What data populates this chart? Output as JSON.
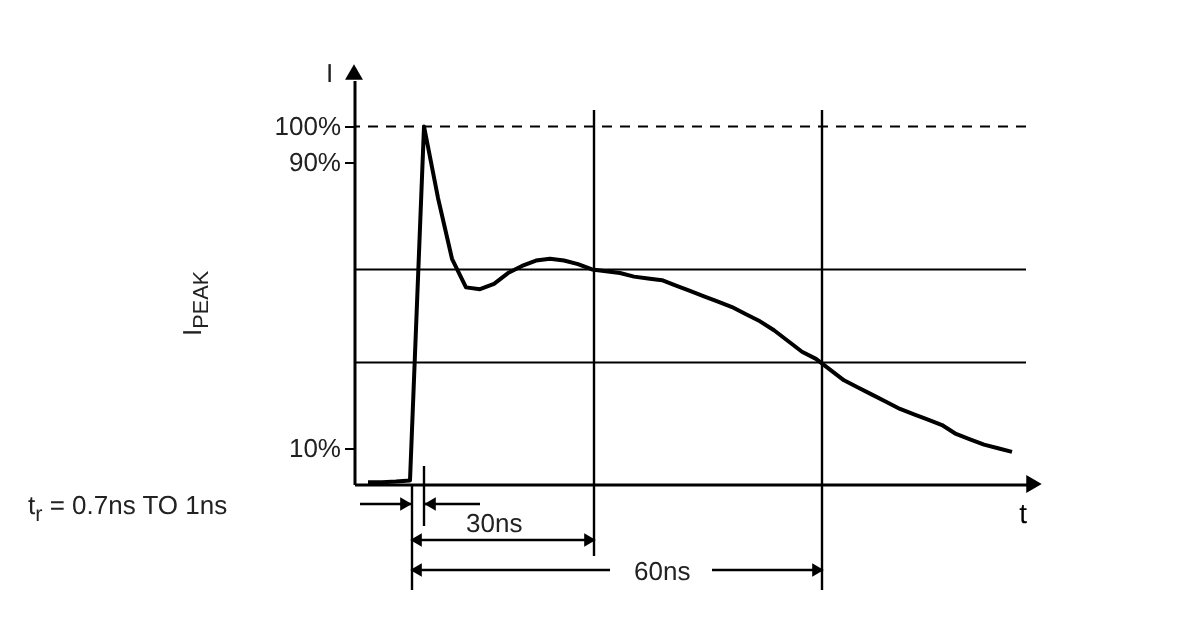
{
  "chart_data": {
    "type": "line",
    "xlabel": "t",
    "ylabel": "I$_{PEAK}$",
    "annotations": [
      "I",
      "t$_{r}$ = 0.7ns TO 1ns",
      "30ns",
      "60ns"
    ],
    "categories": [
      null,
      null,
      null,
      null,
      null,
      null,
      null,
      null,
      null,
      null,
      null,
      null,
      null,
      null,
      null,
      null,
      null,
      null,
      null,
      null,
      null,
      null,
      null,
      null,
      null,
      null,
      null,
      null,
      null,
      null,
      null,
      null,
      null,
      null,
      null,
      null,
      null,
      null,
      null,
      null,
      null,
      null,
      null,
      null,
      null,
      null,
      null
    ],
    "series": [
      {
        "color": "#000000",
        "values": [
          0.5,
          0.5,
          0.7,
          1,
          100,
          80,
          63,
          55,
          54.5,
          56,
          59,
          61,
          62.5,
          63,
          62.5,
          61.5,
          60,
          59.5,
          59,
          58,
          57.5,
          57,
          55.5,
          54,
          52.5,
          51,
          49.5,
          47.5,
          45.5,
          43,
          40,
          37,
          35,
          32,
          29,
          27,
          25,
          23,
          21,
          19.5,
          18,
          16.5,
          14,
          12.5,
          11,
          10,
          9
        ]
      }
    ],
    "ylim": [
      0,
      113
    ],
    "yticks": [
      {
        "value": 10,
        "label": "10%"
      },
      {
        "value": 90,
        "label": "90%"
      },
      {
        "value": 100,
        "label": "100%"
      }
    ],
    "tick_labels": "y",
    "grid": false,
    "ref_lines": [
      {
        "axis": "y",
        "value": 100,
        "line_style": "dashed"
      },
      {
        "axis": "y",
        "value": 60
      },
      {
        "axis": "y",
        "value": 34
      }
    ]
  }
}
